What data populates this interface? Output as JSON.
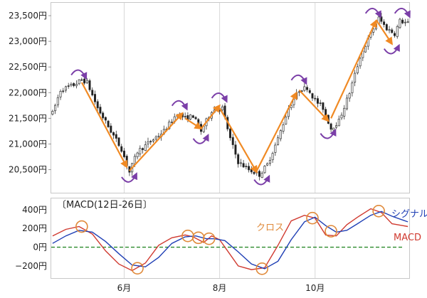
{
  "chart_data": [
    {
      "type": "candlestick",
      "y_ticks": [
        "23,500円",
        "23,000円",
        "22,500円",
        "22,000円",
        "21,500円",
        "21,000円",
        "20,500円"
      ],
      "y_tick_values": [
        23500,
        23000,
        22500,
        22000,
        21500,
        21000,
        20500
      ],
      "ylim": [
        20050,
        23750
      ],
      "x_ticks": [
        "6月",
        "8月",
        "10月"
      ],
      "x_tick_index": [
        27,
        63,
        99
      ],
      "n_days": 135,
      "grid_vertical": true,
      "anchors": [
        [
          0,
          21600
        ],
        [
          3,
          22050
        ],
        [
          8,
          22150
        ],
        [
          11,
          22250
        ],
        [
          13,
          22200
        ],
        [
          17,
          21700
        ],
        [
          22,
          21250
        ],
        [
          26,
          20900
        ],
        [
          29,
          20450
        ],
        [
          32,
          20850
        ],
        [
          37,
          21050
        ],
        [
          42,
          21250
        ],
        [
          47,
          21600
        ],
        [
          50,
          21500
        ],
        [
          53,
          21550
        ],
        [
          56,
          21250
        ],
        [
          60,
          21650
        ],
        [
          64,
          21700
        ],
        [
          67,
          21100
        ],
        [
          70,
          20650
        ],
        [
          74,
          20500
        ],
        [
          78,
          20400
        ],
        [
          81,
          20600
        ],
        [
          85,
          21100
        ],
        [
          89,
          21700
        ],
        [
          93,
          22050
        ],
        [
          96,
          22100
        ],
        [
          99,
          21850
        ],
        [
          102,
          21700
        ],
        [
          105,
          21300
        ],
        [
          108,
          21450
        ],
        [
          112,
          22000
        ],
        [
          116,
          22700
        ],
        [
          120,
          23150
        ],
        [
          123,
          23450
        ],
        [
          126,
          23250
        ],
        [
          129,
          23150
        ],
        [
          131,
          23400
        ],
        [
          134,
          23350
        ]
      ],
      "trend_lines": [
        [
          [
            11,
            22200
          ],
          [
            28,
            20550
          ]
        ],
        [
          [
            29,
            20480
          ],
          [
            49,
            21600
          ]
        ],
        [
          [
            50,
            21500
          ],
          [
            56,
            21300
          ]
        ],
        [
          [
            56,
            21300
          ],
          [
            63,
            21750
          ]
        ],
        [
          [
            63,
            21700
          ],
          [
            77,
            20450
          ]
        ],
        [
          [
            77,
            20480
          ],
          [
            92,
            22000
          ]
        ],
        [
          [
            93,
            22050
          ],
          [
            104,
            21450
          ]
        ],
        [
          [
            105,
            21500
          ],
          [
            122,
            23400
          ]
        ],
        [
          [
            122,
            23420
          ],
          [
            128,
            22950
          ]
        ]
      ],
      "reversal_arrows": [
        {
          "at": [
            10,
            22400
          ],
          "kind": "top"
        },
        {
          "at": [
            29,
            20300
          ],
          "kind": "bottom"
        },
        {
          "at": [
            48,
            21800
          ],
          "kind": "top"
        },
        {
          "at": [
            56,
            21050
          ],
          "kind": "bottom"
        },
        {
          "at": [
            63,
            21950
          ],
          "kind": "top"
        },
        {
          "at": [
            79,
            20250
          ],
          "kind": "bottom"
        },
        {
          "at": [
            93,
            22300
          ],
          "kind": "top"
        },
        {
          "at": [
            104,
            21150
          ],
          "kind": "bottom"
        },
        {
          "at": [
            121,
            23600
          ],
          "kind": "top"
        },
        {
          "at": [
            128,
            22800
          ],
          "kind": "bottom"
        },
        {
          "at": [
            132,
            23600
          ],
          "kind": "top"
        }
      ],
      "trend_color": "#f08a24",
      "arrow_color": "#7b3fa8"
    },
    {
      "type": "line",
      "indicator_label": "〔MACD(12日-26日〕",
      "y_ticks": [
        "400円",
        "200円",
        "0円",
        "−200円"
      ],
      "y_tick_values": [
        400,
        200,
        0,
        -200
      ],
      "zero_label_color": "#2a7a2a",
      "ylim": [
        -330,
        520
      ],
      "x_ticks": [
        "6月",
        "8月",
        "10月"
      ],
      "x_tick_index": [
        27,
        63,
        99
      ],
      "n_days": 135,
      "series": [
        {
          "name": "MACD",
          "color": "#d03a30",
          "points": [
            [
              0,
              120
            ],
            [
              5,
              190
            ],
            [
              10,
              220
            ],
            [
              15,
              140
            ],
            [
              20,
              -40
            ],
            [
              25,
              -180
            ],
            [
              30,
              -250
            ],
            [
              35,
              -170
            ],
            [
              40,
              20
            ],
            [
              45,
              100
            ],
            [
              50,
              130
            ],
            [
              53,
              110
            ],
            [
              57,
              50
            ],
            [
              60,
              120
            ],
            [
              63,
              80
            ],
            [
              66,
              -40
            ],
            [
              70,
              -200
            ],
            [
              75,
              -240
            ],
            [
              80,
              -220
            ],
            [
              85,
              20
            ],
            [
              90,
              280
            ],
            [
              95,
              340
            ],
            [
              99,
              310
            ],
            [
              103,
              130
            ],
            [
              107,
              120
            ],
            [
              111,
              240
            ],
            [
              115,
              320
            ],
            [
              120,
              410
            ],
            [
              124,
              370
            ],
            [
              128,
              250
            ],
            [
              132,
              230
            ],
            [
              134,
              220
            ]
          ]
        },
        {
          "name": "シグナル",
          "color": "#1f3fb5",
          "points": [
            [
              0,
              40
            ],
            [
              5,
              120
            ],
            [
              10,
              180
            ],
            [
              15,
              160
            ],
            [
              20,
              60
            ],
            [
              25,
              -70
            ],
            [
              30,
              -190
            ],
            [
              35,
              -210
            ],
            [
              40,
              -110
            ],
            [
              45,
              40
            ],
            [
              50,
              110
            ],
            [
              54,
              120
            ],
            [
              58,
              90
            ],
            [
              61,
              90
            ],
            [
              65,
              70
            ],
            [
              70,
              -50
            ],
            [
              75,
              -180
            ],
            [
              80,
              -230
            ],
            [
              85,
              -150
            ],
            [
              90,
              80
            ],
            [
              95,
              270
            ],
            [
              99,
              320
            ],
            [
              103,
              230
            ],
            [
              107,
              160
            ],
            [
              111,
              180
            ],
            [
              115,
              250
            ],
            [
              120,
              340
            ],
            [
              124,
              380
            ],
            [
              128,
              330
            ],
            [
              132,
              290
            ],
            [
              134,
              270
            ]
          ]
        }
      ],
      "crossovers": [
        [
          11,
          220
        ],
        [
          32,
          -225
        ],
        [
          51,
          120
        ],
        [
          55,
          100
        ],
        [
          59,
          90
        ],
        [
          79,
          -230
        ],
        [
          98,
          310
        ],
        [
          105,
          170
        ],
        [
          123,
          385
        ]
      ],
      "zero_line_color": "#2a8a2a",
      "legend": {
        "signal": "シグナル",
        "macd": "MACD",
        "cross": "クロス"
      },
      "cross_color": "#e08a3a"
    }
  ]
}
